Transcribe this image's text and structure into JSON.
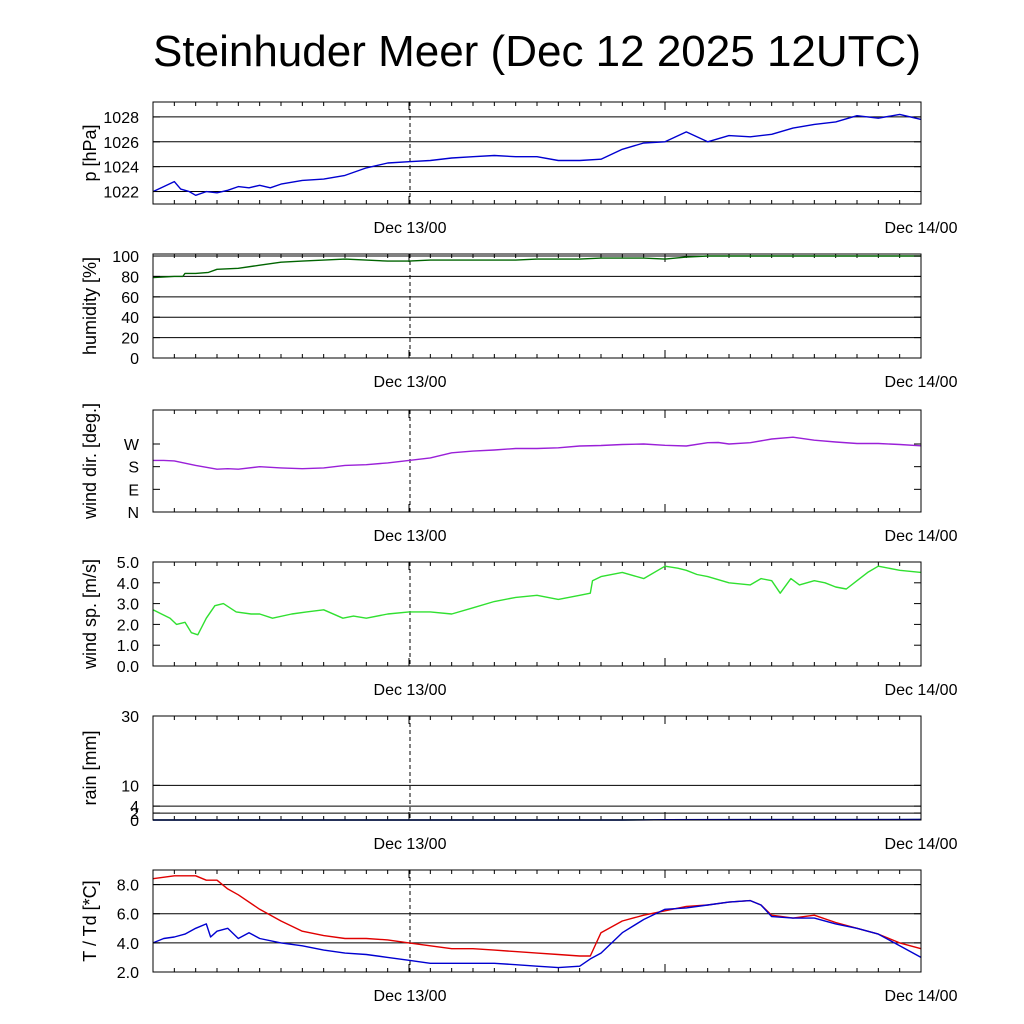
{
  "title": "Steinhuder Meer (Dec 12 2025 12UTC)",
  "chart_data": [
    {
      "type": "line",
      "ylabel": "p [hPa]",
      "ylim": [
        1021,
        1029.2
      ],
      "ticks": [
        {
          "v": 1022,
          "label": "1022"
        },
        {
          "v": 1024,
          "label": "1024"
        },
        {
          "v": 1026,
          "label": "1026"
        },
        {
          "v": 1028,
          "label": "1028"
        }
      ],
      "grid": [
        1022,
        1024,
        1026,
        1028
      ],
      "x_labels": [
        "Dec 13/00",
        "Dec 14/00"
      ],
      "series": [
        {
          "name": "pressure",
          "color": "#0000d0",
          "x": [
            0,
            0.5,
            1,
            1.3,
            1.7,
            2,
            2.5,
            3,
            3.5,
            4,
            4.5,
            5,
            5.5,
            6,
            7,
            8,
            9,
            10,
            11,
            12,
            13,
            14,
            15,
            16,
            17,
            18,
            19,
            20,
            21,
            22,
            23,
            24,
            25,
            26,
            27,
            28,
            29,
            30,
            31,
            32,
            33,
            34,
            35,
            36
          ],
          "y": [
            1022.0,
            1022.4,
            1022.8,
            1022.2,
            1022.0,
            1021.7,
            1022.0,
            1021.9,
            1022.1,
            1022.4,
            1022.3,
            1022.5,
            1022.3,
            1022.6,
            1022.9,
            1023.0,
            1023.3,
            1023.9,
            1024.3,
            1024.4,
            1024.5,
            1024.7,
            1024.8,
            1024.9,
            1024.8,
            1024.8,
            1024.5,
            1024.5,
            1024.6,
            1025.4,
            1025.9,
            1026.0,
            1026.8,
            1026.0,
            1026.5,
            1026.4,
            1026.6,
            1027.1,
            1027.4,
            1027.6,
            1028.1,
            1027.9,
            1028.2,
            1027.8
          ]
        }
      ]
    },
    {
      "type": "line",
      "ylabel": "humidity [%]",
      "ylim": [
        0,
        102
      ],
      "ticks": [
        {
          "v": 0,
          "label": "0"
        },
        {
          "v": 20,
          "label": "20"
        },
        {
          "v": 40,
          "label": "40"
        },
        {
          "v": 60,
          "label": "60"
        },
        {
          "v": 80,
          "label": "80"
        },
        {
          "v": 100,
          "label": "100"
        }
      ],
      "grid": [
        20,
        40,
        60,
        80,
        100
      ],
      "x_labels": [
        "Dec 13/00",
        "Dec 14/00"
      ],
      "series": [
        {
          "name": "humidity",
          "color": "#006400",
          "x": [
            0,
            1,
            1.4,
            1.5,
            2,
            2.6,
            3,
            4,
            5,
            6,
            7,
            8,
            9,
            10,
            11,
            12,
            13,
            14,
            15,
            16,
            17,
            18,
            19,
            20,
            21,
            22,
            23,
            24,
            25,
            26,
            27,
            28,
            29,
            30,
            31,
            32,
            33,
            34,
            35,
            36
          ],
          "y": [
            79,
            80,
            80,
            83,
            83,
            84,
            87,
            88,
            91,
            94,
            95,
            96,
            97,
            96,
            95,
            95,
            96,
            96,
            96,
            96,
            96,
            97,
            97,
            97,
            98,
            98,
            98,
            97,
            99,
            100,
            100,
            100,
            100,
            100,
            100,
            100,
            100,
            100,
            100,
            100
          ]
        }
      ]
    },
    {
      "type": "line",
      "ylabel": "wind dir. [deg.]",
      "ylim": [
        0,
        405
      ],
      "ticks": [
        {
          "v": 0,
          "label": "N"
        },
        {
          "v": 90,
          "label": "E"
        },
        {
          "v": 180,
          "label": "S"
        },
        {
          "v": 270,
          "label": "W"
        }
      ],
      "grid": [],
      "x_labels": [
        "Dec 13/00",
        "Dec 14/00"
      ],
      "series": [
        {
          "name": "wind direction",
          "color": "#9a20d8",
          "x": [
            0,
            0.5,
            1,
            2,
            3,
            3.5,
            4,
            5,
            6,
            7,
            8,
            9,
            10,
            11,
            12,
            13,
            14,
            15,
            16,
            17,
            18,
            19,
            20,
            21,
            22,
            23,
            24,
            25,
            26,
            26.5,
            27,
            28,
            29,
            30,
            31,
            32,
            33,
            34,
            35,
            36
          ],
          "y": [
            205,
            205,
            203,
            185,
            170,
            172,
            170,
            180,
            175,
            172,
            175,
            185,
            188,
            195,
            205,
            215,
            235,
            242,
            246,
            252,
            252,
            255,
            262,
            264,
            268,
            270,
            265,
            262,
            275,
            276,
            270,
            275,
            290,
            297,
            285,
            278,
            272,
            272,
            268,
            263
          ]
        }
      ]
    },
    {
      "type": "line",
      "ylabel": "wind sp. [m/s]",
      "ylim": [
        0,
        5
      ],
      "ticks": [
        {
          "v": 0,
          "label": "0.0"
        },
        {
          "v": 1,
          "label": "1.0"
        },
        {
          "v": 2,
          "label": "2.0"
        },
        {
          "v": 3,
          "label": "3.0"
        },
        {
          "v": 4,
          "label": "4.0"
        },
        {
          "v": 5,
          "label": "5.0"
        }
      ],
      "grid": [],
      "x_labels": [
        "Dec 13/00",
        "Dec 14/00"
      ],
      "series": [
        {
          "name": "wind speed",
          "color": "#30e030",
          "x": [
            0,
            0.4,
            0.8,
            1.1,
            1.5,
            1.8,
            2.1,
            2.5,
            2.9,
            3.3,
            3.9,
            4.6,
            5.0,
            5.6,
            6.5,
            7.2,
            8,
            8.9,
            9.4,
            10,
            11,
            12,
            13,
            14,
            15,
            16,
            17,
            18,
            19,
            20,
            20.5,
            20.6,
            21,
            22,
            23,
            24,
            24.6,
            25,
            25.5,
            26,
            27,
            28,
            28.5,
            29,
            29.4,
            29.9,
            30.3,
            31,
            31.5,
            32,
            32.5,
            33,
            33.5,
            34,
            35,
            36
          ],
          "y": [
            2.7,
            2.5,
            2.3,
            2.0,
            2.1,
            1.6,
            1.5,
            2.3,
            2.9,
            3.0,
            2.6,
            2.5,
            2.5,
            2.3,
            2.5,
            2.6,
            2.7,
            2.3,
            2.4,
            2.3,
            2.5,
            2.6,
            2.6,
            2.5,
            2.8,
            3.1,
            3.3,
            3.4,
            3.2,
            3.4,
            3.5,
            4.1,
            4.3,
            4.5,
            4.2,
            4.8,
            4.7,
            4.6,
            4.4,
            4.3,
            4.0,
            3.9,
            4.2,
            4.1,
            3.5,
            4.2,
            3.9,
            4.1,
            4.0,
            3.8,
            3.7,
            4.1,
            4.5,
            4.8,
            4.6,
            4.5
          ]
        }
      ]
    },
    {
      "type": "line",
      "ylabel": "rain [mm]",
      "ylim": [
        0,
        30
      ],
      "ticks": [
        {
          "v": 0,
          "label": "0"
        },
        {
          "v": 2,
          "label": "2"
        },
        {
          "v": 4,
          "label": "4"
        },
        {
          "v": 10,
          "label": "10"
        },
        {
          "v": 30,
          "label": "30"
        }
      ],
      "grid": [
        2,
        4,
        10,
        30
      ],
      "x_labels": [
        "Dec 13/00",
        "Dec 14/00"
      ],
      "series": [
        {
          "name": "rain green",
          "color": "#2a8a2a",
          "x": [
            0,
            22,
            23,
            24,
            36
          ],
          "y": [
            0,
            0,
            0.05,
            0.1,
            0.15
          ]
        },
        {
          "name": "rain blue",
          "color": "#0000d0",
          "x": [
            0,
            22,
            23,
            24,
            36
          ],
          "y": [
            0,
            0,
            0.04,
            0.1,
            0.15
          ]
        }
      ]
    },
    {
      "type": "line",
      "ylabel": "T / Td [*C]",
      "ylim": [
        2.0,
        9.0
      ],
      "ticks": [
        {
          "v": 2,
          "label": "2.0"
        },
        {
          "v": 4,
          "label": "4.0"
        },
        {
          "v": 6,
          "label": "6.0"
        },
        {
          "v": 8,
          "label": "8.0"
        }
      ],
      "grid": [
        4,
        6,
        8
      ],
      "x_labels": [
        "Dec 13/00",
        "Dec 14/00"
      ],
      "series": [
        {
          "name": "T",
          "color": "#e00000",
          "x": [
            0,
            1,
            2,
            2.5,
            3,
            3.5,
            4,
            5,
            6,
            7,
            8,
            9,
            10,
            11,
            12,
            13,
            14,
            15,
            16,
            17,
            18,
            19,
            20,
            20.5,
            21,
            22,
            23,
            24,
            25,
            26,
            27,
            28,
            28.5,
            29,
            30,
            31,
            32,
            33,
            34,
            35,
            36
          ],
          "y": [
            8.4,
            8.6,
            8.6,
            8.3,
            8.3,
            7.7,
            7.3,
            6.3,
            5.5,
            4.8,
            4.5,
            4.3,
            4.3,
            4.2,
            4.0,
            3.8,
            3.6,
            3.6,
            3.5,
            3.4,
            3.3,
            3.2,
            3.1,
            3.1,
            4.7,
            5.5,
            5.9,
            6.2,
            6.5,
            6.6,
            6.8,
            6.9,
            6.6,
            5.9,
            5.7,
            5.9,
            5.4,
            5.0,
            4.6,
            4.0,
            3.6
          ]
        },
        {
          "name": "Td",
          "color": "#0000d0",
          "x": [
            0,
            0.5,
            1,
            1.5,
            2,
            2.5,
            2.7,
            3,
            3.5,
            4,
            4.5,
            5,
            6,
            7,
            8,
            9,
            10,
            11,
            12,
            13,
            14,
            15,
            16,
            17,
            18,
            19,
            20,
            20.5,
            21,
            22,
            23,
            24,
            25,
            26,
            27,
            28,
            28.5,
            29,
            30,
            31,
            32,
            33,
            34,
            35,
            36
          ],
          "y": [
            4.0,
            4.3,
            4.4,
            4.6,
            5.0,
            5.3,
            4.4,
            4.8,
            5.0,
            4.3,
            4.7,
            4.3,
            4.0,
            3.8,
            3.5,
            3.3,
            3.2,
            3.0,
            2.8,
            2.6,
            2.6,
            2.6,
            2.6,
            2.5,
            2.4,
            2.3,
            2.4,
            2.9,
            3.3,
            4.7,
            5.6,
            6.3,
            6.4,
            6.6,
            6.8,
            6.9,
            6.6,
            5.8,
            5.7,
            5.7,
            5.3,
            5.0,
            4.6,
            3.8,
            3.0
          ]
        }
      ]
    }
  ]
}
